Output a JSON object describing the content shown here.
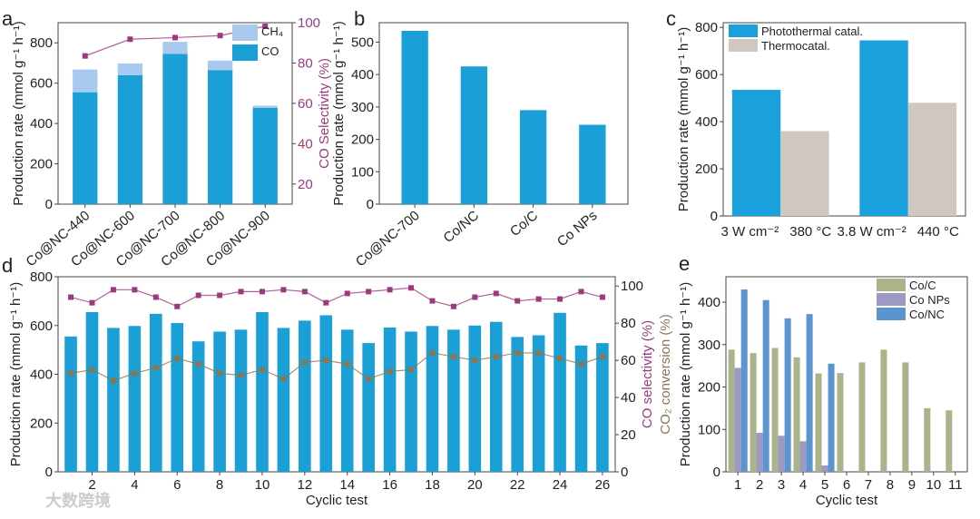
{
  "watermark": "大数跨境",
  "chart_data": [
    {
      "panel": "a",
      "type": "bar",
      "stacked": true,
      "categories": [
        "Co@NC-440",
        "Co@NC-600",
        "Co@NC-700",
        "Co@NC-800",
        "Co@NC-900"
      ],
      "series": [
        {
          "name": "CO",
          "values": [
            555,
            640,
            745,
            665,
            478
          ],
          "color": "#1a9fd6"
        },
        {
          "name": "CH₄",
          "values": [
            113,
            58,
            60,
            47,
            10
          ],
          "color": "#a9c9ef"
        }
      ],
      "lines": [
        {
          "name": "CO Selectivity",
          "values": [
            83.5,
            91.8,
            92.6,
            93.6,
            98.2
          ],
          "color": "#9b3b7d",
          "axis": "y2"
        }
      ],
      "ylabel": "Production rate (mmol g⁻¹ h⁻¹)",
      "y2label": "CO Selectivity (%)",
      "ylim": [
        0,
        900
      ],
      "y2lim": [
        10,
        100
      ],
      "yticks": [
        0,
        200,
        400,
        600,
        800
      ],
      "y2ticks": [
        20,
        40,
        60,
        80,
        100
      ],
      "legend": "top-right"
    },
    {
      "panel": "b",
      "type": "bar",
      "categories": [
        "Co@NC-700",
        "Co/NC",
        "Co/C",
        "Co NPs"
      ],
      "series": [
        {
          "name": "Production rate",
          "values": [
            535,
            425,
            290,
            245
          ],
          "color": "#1a9fd6"
        }
      ],
      "ylabel": "Production rate (mmol g⁻¹ h⁻¹)",
      "ylim": [
        0,
        560
      ],
      "yticks": [
        0,
        100,
        200,
        300,
        400,
        500
      ]
    },
    {
      "panel": "c",
      "type": "bar",
      "categories": [
        "3 W cm⁻² / 380 °C",
        "3.8 W cm⁻² / 440 °C"
      ],
      "bar_labels": [
        [
          "3 W cm⁻²",
          "380 °C"
        ],
        [
          "3.8 W cm⁻²",
          "440 °C"
        ]
      ],
      "series": [
        {
          "name": "Photothermal catal.",
          "values": [
            535,
            745
          ],
          "color": "#1aa0dc"
        },
        {
          "name": "Thermocatal.",
          "values": [
            360,
            480
          ],
          "color": "#d0c7c0"
        }
      ],
      "ylabel": "Production rate (mmol g⁻¹ h⁻¹)",
      "ylim": [
        0,
        820
      ],
      "yticks": [
        0,
        200,
        400,
        600,
        800
      ],
      "legend": "top-left"
    },
    {
      "panel": "d",
      "type": "bar",
      "categories": [
        1,
        2,
        3,
        4,
        5,
        6,
        7,
        8,
        9,
        10,
        11,
        12,
        13,
        14,
        15,
        16,
        17,
        18,
        19,
        20,
        21,
        22,
        23,
        24,
        25,
        26
      ],
      "series": [
        {
          "name": "Production rate",
          "values": [
            555,
            655,
            590,
            598,
            648,
            610,
            535,
            575,
            583,
            655,
            590,
            620,
            642,
            583,
            528,
            592,
            575,
            598,
            583,
            600,
            615,
            553,
            560,
            652,
            518,
            528
          ],
          "color": "#1a9fd6"
        }
      ],
      "lines": [
        {
          "name": "CO selectivity",
          "values": [
            94,
            91,
            98,
            98,
            94,
            89,
            95,
            95,
            97,
            97,
            98,
            97,
            91,
            96,
            97,
            98,
            99,
            92,
            89,
            94,
            96,
            92,
            93,
            93,
            97,
            94
          ],
          "color": "#9b3b7d",
          "axis": "y2"
        },
        {
          "name": "CO₂ conversion",
          "values": [
            53,
            55,
            49,
            53,
            56,
            61,
            58,
            53,
            52,
            55,
            50,
            59,
            60,
            58,
            50,
            54,
            55,
            64,
            62,
            60,
            62,
            64,
            64,
            61,
            58,
            62
          ],
          "color": "#8c7550",
          "axis": "y2"
        }
      ],
      "xlabel": "Cyclic test",
      "ylabel": "Production rate (mmol g⁻¹ h⁻¹)",
      "y2label": "CO selectivity (%)",
      "y3label": "CO₂ conversion (%)",
      "ylim": [
        0,
        800
      ],
      "y2lim": [
        0,
        105
      ],
      "xticks": [
        2,
        4,
        6,
        8,
        10,
        12,
        14,
        16,
        18,
        20,
        22,
        24,
        26
      ],
      "yticks": [
        0,
        200,
        400,
        600,
        800
      ],
      "y2ticks": [
        0,
        20,
        40,
        60,
        80,
        100
      ]
    },
    {
      "panel": "e",
      "type": "bar",
      "categories": [
        1,
        2,
        3,
        4,
        5,
        6,
        7,
        8,
        9,
        10,
        11
      ],
      "series": [
        {
          "name": "Co/C",
          "values": [
            288,
            280,
            292,
            270,
            232,
            233,
            258,
            288,
            258,
            150,
            145
          ],
          "color": "#aab38a"
        },
        {
          "name": "Co NPs",
          "values": [
            245,
            92,
            85,
            72,
            15,
            2,
            0,
            0,
            0,
            0,
            0
          ],
          "color": "#9c9ac2"
        },
        {
          "name": "Co/NC",
          "values": [
            430,
            405,
            362,
            372,
            255,
            0,
            0,
            0,
            0,
            0,
            0
          ],
          "color": "#5b95d0"
        }
      ],
      "xlabel": "Cyclic test",
      "ylabel": "Production rate (mmol g⁻¹ h⁻¹)",
      "ylim": [
        0,
        460
      ],
      "yticks": [
        0,
        100,
        200,
        300,
        400
      ],
      "legend": "top-right"
    }
  ]
}
